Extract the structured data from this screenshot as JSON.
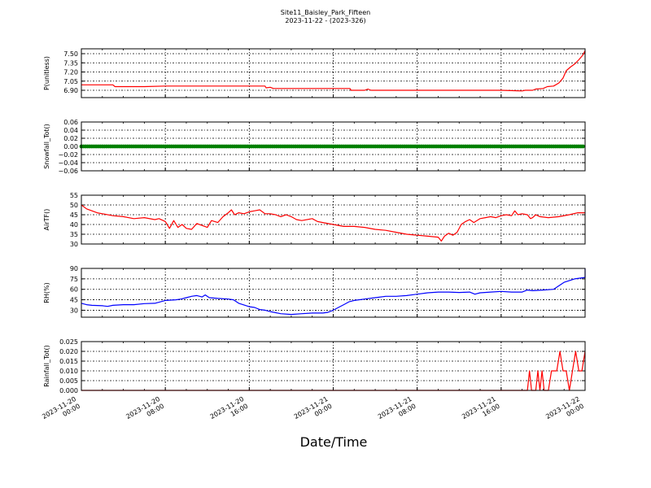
{
  "title": "Site11_Baisley_Park_Fifteen",
  "subtitle": "2023-11-22 - (2023-326)",
  "xlabel": "Date/Time",
  "colors": {
    "red": "#ff0000",
    "green": "#008000",
    "blue": "#0000ff"
  },
  "chart_data": {
    "type": "line",
    "x_range": [
      "2023-11-20 00:00",
      "2023-11-22 00:00"
    ],
    "x_ticks": [
      {
        "line1": "2023-11-20",
        "line2": "00:00",
        "hour": 0
      },
      {
        "line1": "2023-11-20",
        "line2": "08:00",
        "hour": 8
      },
      {
        "line1": "2023-11-20",
        "line2": "16:00",
        "hour": 16
      },
      {
        "line1": "2023-11-21",
        "line2": "00:00",
        "hour": 24
      },
      {
        "line1": "2023-11-21",
        "line2": "08:00",
        "hour": 32
      },
      {
        "line1": "2023-11-21",
        "line2": "16:00",
        "hour": 40
      },
      {
        "line1": "2023-11-22",
        "line2": "00:00",
        "hour": 48
      }
    ],
    "grid": true,
    "panels": [
      {
        "ylabel": "P(unitless)",
        "ylim": [
          6.78,
          7.58
        ],
        "yticks": [
          "7.50",
          "7.35",
          "7.20",
          "7.05",
          "6.90"
        ],
        "ytick_values": [
          7.5,
          7.35,
          7.2,
          7.05,
          6.9
        ],
        "color": "#ff0000",
        "style": "line",
        "points": [
          [
            0,
            6.99
          ],
          [
            3,
            6.99
          ],
          [
            3.2,
            6.96
          ],
          [
            6,
            6.96
          ],
          [
            8,
            6.97
          ],
          [
            12,
            6.97
          ],
          [
            17.5,
            6.97
          ],
          [
            17.6,
            6.94
          ],
          [
            18,
            6.95
          ],
          [
            18.3,
            6.93
          ],
          [
            24,
            6.93
          ],
          [
            25.6,
            6.93
          ],
          [
            25.7,
            6.9
          ],
          [
            27,
            6.9
          ],
          [
            27.3,
            6.92
          ],
          [
            27.6,
            6.9
          ],
          [
            36,
            6.9
          ],
          [
            40,
            6.9
          ],
          [
            42,
            6.89
          ],
          [
            42.3,
            6.9
          ],
          [
            43,
            6.9
          ],
          [
            43.3,
            6.92
          ],
          [
            44,
            6.93
          ],
          [
            44.4,
            6.96
          ],
          [
            45,
            6.97
          ],
          [
            45.5,
            7.02
          ],
          [
            45.9,
            7.1
          ],
          [
            46.2,
            7.22
          ],
          [
            46.6,
            7.28
          ],
          [
            47,
            7.33
          ],
          [
            47.4,
            7.4
          ],
          [
            47.8,
            7.48
          ],
          [
            48,
            7.55
          ]
        ]
      },
      {
        "ylabel": "Snowfall_Tot()",
        "ylim": [
          -0.06,
          0.06
        ],
        "yticks": [
          "0.06",
          "0.04",
          "0.02",
          "0.00",
          "−0.02",
          "−0.04",
          "−0.06"
        ],
        "ytick_values": [
          0.06,
          0.04,
          0.02,
          0,
          -0.02,
          -0.04,
          -0.06
        ],
        "color": "#008000",
        "style": "markers",
        "points": [
          [
            0,
            0
          ],
          [
            48,
            0
          ]
        ]
      },
      {
        "ylabel": "AirTF()",
        "ylim": [
          30,
          55
        ],
        "yticks": [
          "55",
          "50",
          "45",
          "40",
          "35",
          "30"
        ],
        "ytick_values": [
          55,
          50,
          45,
          40,
          35,
          30
        ],
        "color": "#ff0000",
        "style": "line",
        "points": [
          [
            0,
            50
          ],
          [
            0.5,
            48
          ],
          [
            1,
            47
          ],
          [
            1.5,
            46
          ],
          [
            2,
            45.5
          ],
          [
            3,
            44.5
          ],
          [
            4,
            44
          ],
          [
            5,
            43
          ],
          [
            6,
            43.5
          ],
          [
            7,
            42.5
          ],
          [
            7.4,
            43
          ],
          [
            7.8,
            42
          ],
          [
            8,
            41.5
          ],
          [
            8.4,
            38
          ],
          [
            8.8,
            42
          ],
          [
            9.2,
            38.5
          ],
          [
            9.6,
            40
          ],
          [
            10,
            38
          ],
          [
            10.5,
            37.5
          ],
          [
            11,
            40.5
          ],
          [
            11.5,
            39.5
          ],
          [
            12,
            38.5
          ],
          [
            12.4,
            42
          ],
          [
            13,
            41
          ],
          [
            13.5,
            44
          ],
          [
            14,
            46
          ],
          [
            14.3,
            47.5
          ],
          [
            14.6,
            45
          ],
          [
            15,
            46
          ],
          [
            15.5,
            45.5
          ],
          [
            16,
            46.5
          ],
          [
            16.5,
            47
          ],
          [
            17,
            47.5
          ],
          [
            17.5,
            45.5
          ],
          [
            18,
            45.5
          ],
          [
            18.5,
            45
          ],
          [
            19,
            44
          ],
          [
            19.5,
            45
          ],
          [
            20,
            44
          ],
          [
            20.5,
            42.5
          ],
          [
            21,
            42
          ],
          [
            22,
            43
          ],
          [
            22.5,
            41.5
          ],
          [
            23,
            41
          ],
          [
            24,
            40
          ],
          [
            25,
            39
          ],
          [
            26,
            39
          ],
          [
            27,
            38.5
          ],
          [
            28,
            37.5
          ],
          [
            29,
            37
          ],
          [
            30,
            36
          ],
          [
            31,
            35
          ],
          [
            32,
            34.5
          ],
          [
            33,
            34
          ],
          [
            34,
            33.5
          ],
          [
            34.3,
            31.5
          ],
          [
            34.6,
            34
          ],
          [
            35,
            35.5
          ],
          [
            35.4,
            34.5
          ],
          [
            35.8,
            36
          ],
          [
            36.2,
            40
          ],
          [
            36.6,
            41.5
          ],
          [
            37,
            42.5
          ],
          [
            37.4,
            41
          ],
          [
            38,
            43
          ],
          [
            38.5,
            43.5
          ],
          [
            39,
            44
          ],
          [
            39.5,
            43.5
          ],
          [
            40,
            44.5
          ],
          [
            40.5,
            45
          ],
          [
            41,
            44.5
          ],
          [
            41.3,
            47
          ],
          [
            41.6,
            45
          ],
          [
            42,
            45.5
          ],
          [
            42.5,
            45
          ],
          [
            42.8,
            43
          ],
          [
            43,
            43.5
          ],
          [
            43.3,
            45
          ],
          [
            43.7,
            44
          ],
          [
            44.5,
            43.5
          ],
          [
            45.5,
            44
          ],
          [
            46.5,
            45
          ],
          [
            47.3,
            46
          ],
          [
            48,
            46
          ]
        ]
      },
      {
        "ylabel": "RH(%)",
        "ylim": [
          20,
          90
        ],
        "yticks": [
          "90",
          "75",
          "60",
          "45",
          "30"
        ],
        "ytick_values": [
          90,
          75,
          60,
          45,
          30
        ],
        "color": "#0000ff",
        "style": "line",
        "points": [
          [
            0,
            40
          ],
          [
            0.5,
            38
          ],
          [
            1,
            37
          ],
          [
            2,
            36.5
          ],
          [
            2.5,
            35.5
          ],
          [
            3,
            37
          ],
          [
            4,
            38
          ],
          [
            5,
            38
          ],
          [
            6,
            39.5
          ],
          [
            7,
            40
          ],
          [
            8,
            44
          ],
          [
            9,
            45
          ],
          [
            9.5,
            46
          ],
          [
            10,
            48
          ],
          [
            10.5,
            50
          ],
          [
            11,
            51
          ],
          [
            11.5,
            49
          ],
          [
            11.8,
            52
          ],
          [
            12.2,
            48
          ],
          [
            13,
            47
          ],
          [
            14,
            46
          ],
          [
            14.5,
            45
          ],
          [
            15,
            40
          ],
          [
            15.4,
            38
          ],
          [
            16,
            35
          ],
          [
            16.5,
            34
          ],
          [
            17,
            31
          ],
          [
            17.5,
            30
          ],
          [
            18,
            28
          ],
          [
            19,
            25
          ],
          [
            20,
            24
          ],
          [
            21,
            25
          ],
          [
            22,
            26
          ],
          [
            23,
            26
          ],
          [
            23.5,
            27
          ],
          [
            24,
            30
          ],
          [
            24.5,
            34
          ],
          [
            25,
            38
          ],
          [
            25.5,
            42
          ],
          [
            26,
            44
          ],
          [
            27,
            46
          ],
          [
            28,
            48
          ],
          [
            29,
            50
          ],
          [
            30,
            50
          ],
          [
            31,
            51
          ],
          [
            32,
            53
          ],
          [
            33,
            55
          ],
          [
            34,
            56
          ],
          [
            35,
            56
          ],
          [
            36,
            55.5
          ],
          [
            37,
            56
          ],
          [
            37.5,
            53
          ],
          [
            38,
            55
          ],
          [
            39,
            56
          ],
          [
            40,
            57
          ],
          [
            41,
            56
          ],
          [
            42,
            56
          ],
          [
            42.5,
            59
          ],
          [
            43,
            58
          ],
          [
            44,
            59
          ],
          [
            45,
            60
          ],
          [
            45.5,
            65
          ],
          [
            46,
            70
          ],
          [
            47,
            75
          ],
          [
            48,
            77
          ],
          [
            49,
            81
          ],
          [
            50,
            82
          ],
          [
            51,
            83
          ],
          [
            52,
            85
          ],
          [
            53,
            86
          ],
          [
            54,
            87
          ],
          [
            55,
            87
          ],
          [
            56,
            87.5
          ],
          [
            56.5,
            89
          ],
          [
            57,
            88
          ],
          [
            58,
            90
          ]
        ]
      },
      {
        "ylabel": "Rainfall_Tot()",
        "ylim": [
          0,
          0.025
        ],
        "yticks": [
          "0.025",
          "0.020",
          "0.015",
          "0.010",
          "0.005",
          "0.000"
        ],
        "ytick_values": [
          0.025,
          0.02,
          0.015,
          0.01,
          0.005,
          0
        ],
        "color": "#ff0000",
        "style": "line",
        "points": [
          [
            0,
            0
          ],
          [
            42.5,
            0
          ],
          [
            42.7,
            0.01
          ],
          [
            42.9,
            0
          ],
          [
            43.3,
            0
          ],
          [
            43.5,
            0.01
          ],
          [
            43.7,
            0
          ],
          [
            43.9,
            0.01
          ],
          [
            44.1,
            0
          ],
          [
            44.5,
            0
          ],
          [
            44.8,
            0.01
          ],
          [
            45.3,
            0.01
          ],
          [
            45.6,
            0.02
          ],
          [
            45.9,
            0.01
          ],
          [
            46.2,
            0.01
          ],
          [
            46.5,
            0
          ],
          [
            46.8,
            0.01
          ],
          [
            47.1,
            0.02
          ],
          [
            47.4,
            0.01
          ],
          [
            47.7,
            0.01
          ],
          [
            48,
            0.02
          ]
        ]
      }
    ]
  }
}
